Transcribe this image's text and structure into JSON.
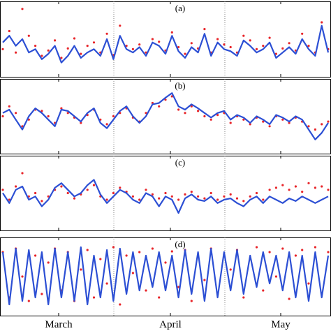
{
  "chart_data": [
    {
      "type": "scatter",
      "panel_label": "(a)",
      "x_axis": "date",
      "x_ticks": [
        "March",
        "April",
        "May"
      ],
      "series": [
        {
          "style": "red dots",
          "color": "#e8252a",
          "y": [
            0.35,
            0.62,
            0.3,
            0.95,
            0.55,
            0.4,
            0.25,
            0.33,
            0.48,
            0.22,
            0.36,
            0.51,
            0.28,
            0.4,
            0.45,
            0.3,
            0.58,
            0.26,
            0.7,
            0.4,
            0.35,
            0.42,
            0.3,
            0.5,
            0.46,
            0.33,
            0.6,
            0.38,
            0.28,
            0.44,
            0.36,
            0.65,
            0.3,
            0.5,
            0.42,
            0.38,
            0.3,
            0.55,
            0.48,
            0.35,
            0.4,
            0.52,
            0.28,
            0.36,
            0.44,
            0.33,
            0.58,
            0.4,
            0.3,
            0.75,
            0.35
          ]
        },
        {
          "style": "blue line",
          "color": "#2c4fd4",
          "y": [
            0.45,
            0.55,
            0.4,
            0.5,
            0.3,
            0.35,
            0.2,
            0.28,
            0.4,
            0.15,
            0.25,
            0.4,
            0.22,
            0.3,
            0.35,
            0.25,
            0.5,
            0.2,
            0.55,
            0.35,
            0.3,
            0.38,
            0.25,
            0.45,
            0.4,
            0.28,
            0.55,
            0.32,
            0.22,
            0.38,
            0.3,
            0.58,
            0.25,
            0.45,
            0.35,
            0.32,
            0.25,
            0.48,
            0.4,
            0.3,
            0.35,
            0.45,
            0.22,
            0.3,
            0.38,
            0.28,
            0.5,
            0.35,
            0.25,
            0.7,
            0.3
          ]
        }
      ]
    },
    {
      "type": "scatter",
      "panel_label": "(b)",
      "x_axis": "date",
      "x_ticks": [
        "March",
        "April",
        "May"
      ],
      "series": [
        {
          "style": "red dots",
          "color": "#e8252a",
          "y": [
            0.5,
            0.65,
            0.55,
            0.35,
            0.45,
            0.6,
            0.58,
            0.5,
            0.4,
            0.62,
            0.55,
            0.48,
            0.4,
            0.52,
            0.6,
            0.45,
            0.38,
            0.5,
            0.55,
            0.62,
            0.48,
            0.42,
            0.55,
            0.7,
            0.65,
            0.75,
            0.8,
            0.6,
            0.55,
            0.65,
            0.58,
            0.5,
            0.45,
            0.52,
            0.55,
            0.4,
            0.5,
            0.45,
            0.38,
            0.48,
            0.42,
            0.35,
            0.5,
            0.45,
            0.4,
            0.48,
            0.42,
            0.35,
            0.3,
            0.38,
            0.42
          ]
        },
        {
          "style": "blue line",
          "color": "#2c4fd4",
          "y": [
            0.55,
            0.6,
            0.45,
            0.3,
            0.5,
            0.62,
            0.55,
            0.45,
            0.35,
            0.6,
            0.58,
            0.5,
            0.42,
            0.55,
            0.62,
            0.4,
            0.32,
            0.45,
            0.58,
            0.65,
            0.5,
            0.4,
            0.5,
            0.68,
            0.7,
            0.78,
            0.85,
            0.65,
            0.6,
            0.68,
            0.62,
            0.55,
            0.48,
            0.55,
            0.58,
            0.45,
            0.52,
            0.48,
            0.4,
            0.5,
            0.45,
            0.38,
            0.52,
            0.48,
            0.42,
            0.5,
            0.45,
            0.3,
            0.15,
            0.25,
            0.4
          ]
        }
      ]
    },
    {
      "type": "scatter",
      "panel_label": "(c)",
      "x_axis": "date",
      "x_ticks": [
        "March",
        "April",
        "May"
      ],
      "series": [
        {
          "style": "red dots",
          "color": "#e8252a",
          "y": [
            0.55,
            0.4,
            0.6,
            0.8,
            0.45,
            0.5,
            0.38,
            0.45,
            0.55,
            0.6,
            0.5,
            0.42,
            0.48,
            0.55,
            0.62,
            0.45,
            0.4,
            0.5,
            0.58,
            0.52,
            0.45,
            0.4,
            0.55,
            0.48,
            0.42,
            0.5,
            0.45,
            0.4,
            0.48,
            0.52,
            0.45,
            0.42,
            0.5,
            0.4,
            0.45,
            0.48,
            0.42,
            0.38,
            0.45,
            0.5,
            0.4,
            0.55,
            0.58,
            0.62,
            0.55,
            0.6,
            0.52,
            0.65,
            0.58,
            0.6,
            0.55
          ]
        },
        {
          "style": "blue line",
          "color": "#2c4fd4",
          "y": [
            0.5,
            0.35,
            0.55,
            0.6,
            0.4,
            0.45,
            0.3,
            0.4,
            0.58,
            0.65,
            0.55,
            0.45,
            0.5,
            0.62,
            0.7,
            0.48,
            0.35,
            0.45,
            0.55,
            0.5,
            0.4,
            0.35,
            0.5,
            0.45,
            0.3,
            0.45,
            0.4,
            0.2,
            0.42,
            0.48,
            0.4,
            0.38,
            0.45,
            0.35,
            0.4,
            0.42,
            0.35,
            0.3,
            0.4,
            0.45,
            0.35,
            0.45,
            0.4,
            0.35,
            0.42,
            0.38,
            0.45,
            0.4,
            0.35,
            0.4,
            0.45
          ]
        }
      ]
    },
    {
      "type": "scatter",
      "panel_label": "(d)",
      "x_axis": "date",
      "x_ticks": [
        "March",
        "April",
        "May"
      ],
      "series": [
        {
          "style": "red dots",
          "color": "#e8252a",
          "y": [
            0.85,
            0.2,
            0.9,
            0.5,
            0.15,
            0.8,
            0.25,
            0.7,
            0.9,
            0.3,
            0.85,
            0.15,
            0.6,
            0.88,
            0.2,
            0.75,
            0.4,
            0.92,
            0.1,
            0.8,
            0.55,
            0.85,
            0.3,
            0.9,
            0.2,
            0.7,
            0.86,
            0.35,
            0.88,
            0.15,
            0.78,
            0.45,
            0.9,
            0.25,
            0.82,
            0.6,
            0.88,
            0.2,
            0.75,
            0.92,
            0.3,
            0.85,
            0.5,
            0.9,
            0.18,
            0.8,
            0.88,
            0.4,
            0.92,
            0.25,
            0.85
          ]
        },
        {
          "style": "blue line",
          "color": "#2c4fd4",
          "y": [
            0.85,
            0.1,
            0.9,
            0.15,
            0.88,
            0.2,
            0.85,
            0.1,
            0.9,
            0.2,
            0.85,
            0.15,
            0.92,
            0.1,
            0.8,
            0.2,
            0.88,
            0.15,
            0.9,
            0.25,
            0.85,
            0.3,
            0.8,
            0.35,
            0.85,
            0.3,
            0.8,
            0.2,
            0.88,
            0.25,
            0.85,
            0.15,
            0.9,
            0.2,
            0.85,
            0.3,
            0.88,
            0.25,
            0.8,
            0.35,
            0.85,
            0.4,
            0.8,
            0.3,
            0.85,
            0.2,
            0.8,
            0.15,
            0.85,
            0.2,
            0.8
          ]
        }
      ]
    }
  ]
}
